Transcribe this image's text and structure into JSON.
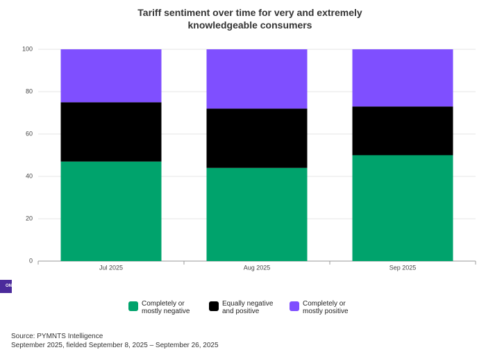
{
  "chart_data": {
    "type": "stacked_bar",
    "title": "Tariff sentiment over time for very and extremely knowledgeable consumers",
    "categories": [
      "Jul 2025",
      "Aug 2025",
      "Sep 2025"
    ],
    "series": [
      {
        "name": "Completely or mostly negative",
        "color": "#00a36c",
        "values": [
          47,
          44,
          50
        ]
      },
      {
        "name": "Equally negative and positive",
        "color": "#000000",
        "values": [
          28,
          28,
          23
        ]
      },
      {
        "name": "Completely or mostly positive",
        "color": "#7f4fff",
        "values": [
          25,
          28,
          27
        ]
      }
    ],
    "ylim": [
      0,
      100
    ],
    "yticks": [
      0,
      20,
      40,
      60,
      80,
      100
    ],
    "grid": true,
    "legend": "bottom",
    "notes": [
      "Source: PYMNTS Intelligence",
      "September 2025, fielded September 8, 2025 – September 26, 2025"
    ]
  },
  "side_tab": "ON"
}
